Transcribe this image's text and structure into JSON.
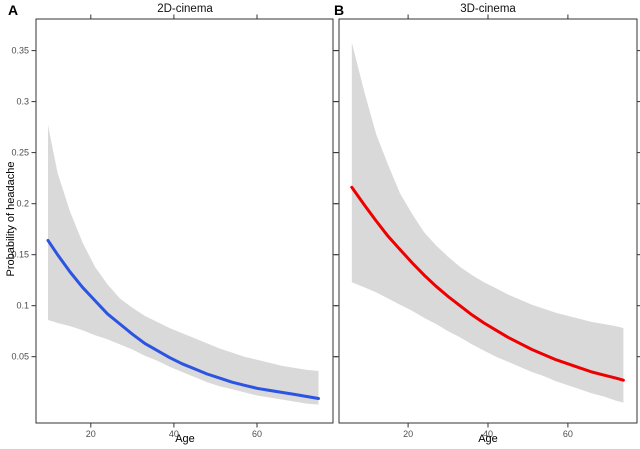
{
  "figure": {
    "background": "#ffffff",
    "panel_a_label": "A",
    "panel_b_label": "B",
    "border_color": "#333333",
    "tick_color": "#333333",
    "tick_label_color": "#4d4d4d"
  },
  "chart_data": [
    {
      "type": "line",
      "panel": "A",
      "title": "2D-cinema",
      "xlabel": "Age",
      "ylabel": "Probability of headache",
      "series_name": "2D-cinema predicted probability",
      "line_color": "#2b54e2",
      "band_color": "#d9d9d9",
      "grid": false,
      "legend": "none",
      "xlim": [
        6.8,
        78.3
      ],
      "ylim": [
        -0.015,
        0.381
      ],
      "x_ticks": [
        20,
        40,
        60
      ],
      "x_tick_labels": [
        "20",
        "40",
        "60"
      ],
      "y_ticks": [
        0.05,
        0.1,
        0.15,
        0.2,
        0.25,
        0.3,
        0.35
      ],
      "y_tick_labels": [
        "0.05",
        "0.1",
        "0.15",
        "0.2",
        "0.25",
        "0.3",
        "0.35"
      ],
      "show_y_tick_labels": true,
      "x": [
        9.7,
        12,
        15,
        18,
        21,
        24,
        27,
        30,
        33,
        36,
        39,
        42,
        45,
        48,
        51,
        54,
        57,
        60,
        63,
        66,
        69,
        72,
        74.8
      ],
      "y": [
        0.164,
        0.15,
        0.133,
        0.118,
        0.105,
        0.092,
        0.082,
        0.072,
        0.063,
        0.056,
        0.049,
        0.043,
        0.038,
        0.033,
        0.029,
        0.025,
        0.022,
        0.019,
        0.017,
        0.015,
        0.013,
        0.011,
        0.009
      ],
      "ci_upper": [
        0.277,
        0.23,
        0.192,
        0.162,
        0.138,
        0.121,
        0.107,
        0.098,
        0.09,
        0.084,
        0.078,
        0.073,
        0.068,
        0.063,
        0.058,
        0.054,
        0.05,
        0.047,
        0.044,
        0.041,
        0.039,
        0.037,
        0.036
      ],
      "ci_lower": [
        0.086,
        0.083,
        0.08,
        0.076,
        0.071,
        0.067,
        0.062,
        0.057,
        0.051,
        0.046,
        0.04,
        0.035,
        0.03,
        0.025,
        0.021,
        0.018,
        0.015,
        0.012,
        0.01,
        0.008,
        0.006,
        0.004,
        0.003
      ]
    },
    {
      "type": "line",
      "panel": "B",
      "title": "3D-cinema",
      "xlabel": "Age",
      "ylabel": "Probability of headache",
      "series_name": "3D-cinema predicted probability",
      "line_color": "#ee0000",
      "band_color": "#d9d9d9",
      "grid": false,
      "legend": "none",
      "xlim": [
        2.7,
        77.3
      ],
      "ylim": [
        -0.015,
        0.381
      ],
      "x_ticks": [
        20,
        40,
        60
      ],
      "x_tick_labels": [
        "20",
        "40",
        "60"
      ],
      "y_ticks": [
        0.05,
        0.1,
        0.15,
        0.2,
        0.25,
        0.3,
        0.35
      ],
      "y_tick_labels": [
        "0.05",
        "0.1",
        "0.15",
        "0.2",
        "0.25",
        "0.3",
        "0.35"
      ],
      "show_y_tick_labels": false,
      "x": [
        5.9,
        9,
        12,
        15,
        18,
        21,
        24,
        27,
        30,
        33,
        36,
        39,
        42,
        45,
        48,
        51,
        54,
        57,
        60,
        63,
        66,
        69,
        72,
        73.9
      ],
      "y": [
        0.216,
        0.199,
        0.183,
        0.168,
        0.155,
        0.142,
        0.13,
        0.119,
        0.109,
        0.1,
        0.091,
        0.083,
        0.076,
        0.069,
        0.063,
        0.057,
        0.052,
        0.047,
        0.043,
        0.039,
        0.035,
        0.032,
        0.029,
        0.027
      ],
      "ci_upper": [
        0.358,
        0.31,
        0.268,
        0.238,
        0.21,
        0.19,
        0.172,
        0.159,
        0.148,
        0.138,
        0.13,
        0.123,
        0.117,
        0.111,
        0.106,
        0.101,
        0.097,
        0.093,
        0.09,
        0.087,
        0.084,
        0.082,
        0.08,
        0.078
      ],
      "ci_lower": [
        0.123,
        0.118,
        0.113,
        0.107,
        0.101,
        0.095,
        0.088,
        0.082,
        0.075,
        0.069,
        0.062,
        0.056,
        0.05,
        0.045,
        0.04,
        0.035,
        0.031,
        0.026,
        0.022,
        0.018,
        0.014,
        0.011,
        0.007,
        0.005
      ]
    }
  ]
}
